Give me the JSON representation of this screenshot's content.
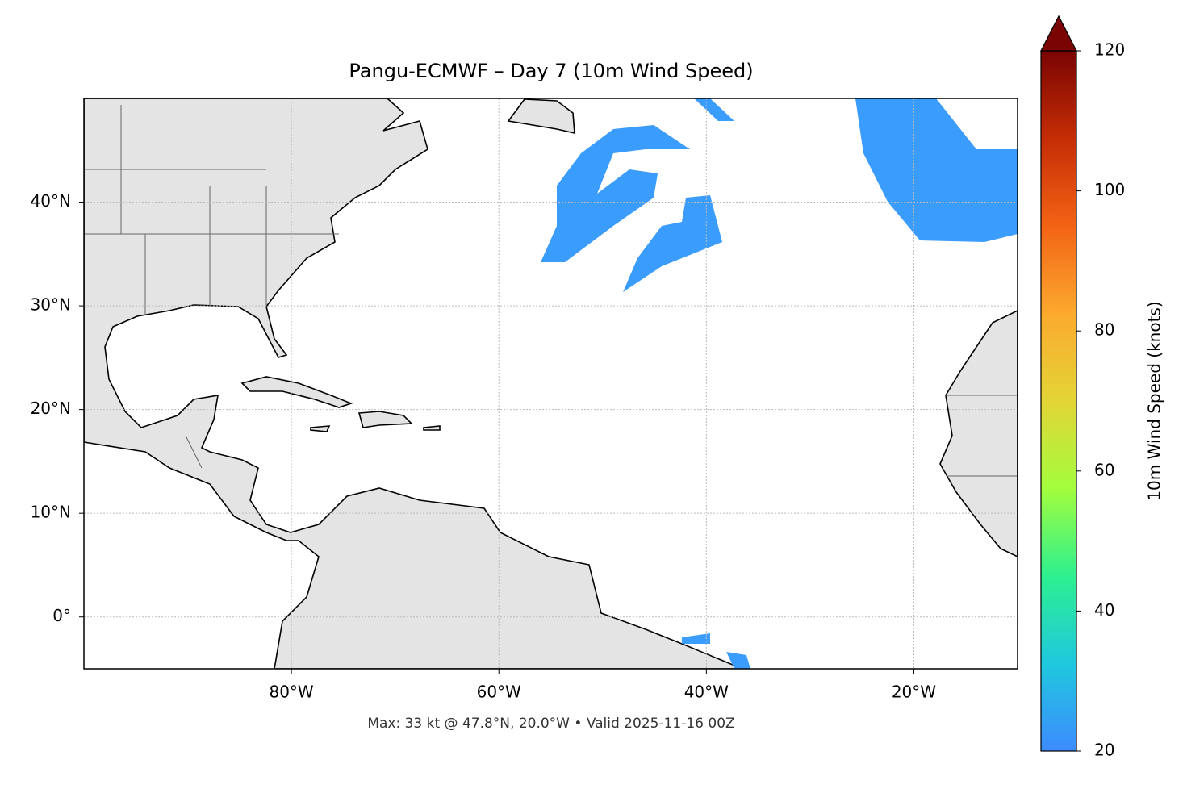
{
  "title": "Pangu-ECMWF – Day 7 (10m Wind Speed)",
  "map": {
    "xlim": [
      -100,
      -10
    ],
    "ylim": [
      -5,
      50
    ],
    "xticks": [
      {
        "value": -80,
        "label": "80°W"
      },
      {
        "value": -60,
        "label": "60°W"
      },
      {
        "value": -40,
        "label": "40°W"
      },
      {
        "value": -20,
        "label": "20°W"
      }
    ],
    "yticks": [
      {
        "value": 0,
        "label": "0°"
      },
      {
        "value": 10,
        "label": "10°N"
      },
      {
        "value": 20,
        "label": "20°N"
      },
      {
        "value": 30,
        "label": "30°N"
      },
      {
        "value": 40,
        "label": "40°N"
      }
    ],
    "grid": true
  },
  "colorbar": {
    "label": "10m Wind Speed (knots)",
    "lim": [
      20,
      120
    ],
    "ticks": [
      20,
      40,
      60,
      80,
      100,
      120
    ],
    "colors": [
      "#3d8bff",
      "#1fc8de",
      "#2df08f",
      "#a3fd3d",
      "#e3d536",
      "#fca92e",
      "#f36315",
      "#c52d06",
      "#7a0403"
    ]
  },
  "footer": "Max: 33 kt @ 47.8°N, 20.0°W • Valid 2025-11-16 00Z"
}
